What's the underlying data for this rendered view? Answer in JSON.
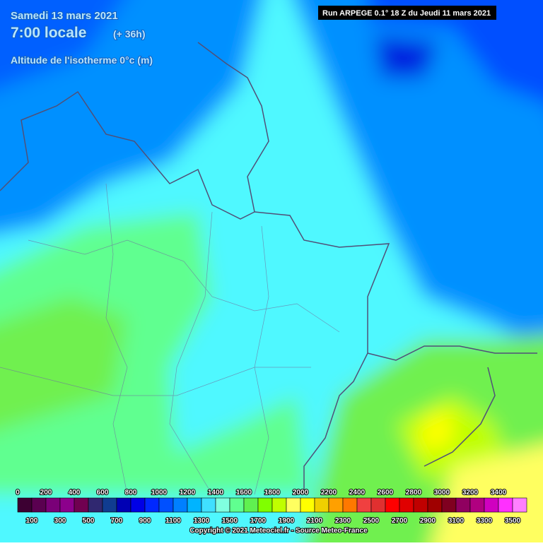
{
  "header": {
    "date": "Samedi 13 mars 2021",
    "time": "7:00 locale",
    "lead": "(+ 36h)",
    "field": "Altitude de l'isotherme 0°c (m)",
    "run": "Run ARPEGE 0.1° 18 Z du Jeudi 11 mars 2021"
  },
  "legend": {
    "levels": [
      0,
      100,
      200,
      300,
      400,
      500,
      600,
      700,
      800,
      900,
      1000,
      1100,
      1200,
      1300,
      1400,
      1500,
      1600,
      1700,
      1800,
      1900,
      2000,
      2100,
      2200,
      2300,
      2400,
      2500,
      2600,
      2700,
      2800,
      2900,
      3000,
      3100,
      3200,
      3300,
      3400,
      3500
    ],
    "colors": [
      "#3c0032",
      "#5a0050",
      "#7a0078",
      "#8c008c",
      "#700050",
      "#302870",
      "#103c90",
      "#0000b4",
      "#0000e6",
      "#0028ff",
      "#0050ff",
      "#0080ff",
      "#00b4ff",
      "#40e0ff",
      "#80ffe0",
      "#60ff90",
      "#60f050",
      "#80ff00",
      "#c0ff00",
      "#ffff60",
      "#ffff00",
      "#f0d000",
      "#ffa000",
      "#ff7800",
      "#f04040",
      "#e03030",
      "#ff0000",
      "#e00000",
      "#c00000",
      "#a00000",
      "#800020",
      "#900060",
      "#b00080",
      "#d000c0",
      "#ff30ff",
      "#ff80ff"
    ]
  },
  "copyright": "Copyright © 2021 Meteociel.fr - Source Meteo-France"
}
